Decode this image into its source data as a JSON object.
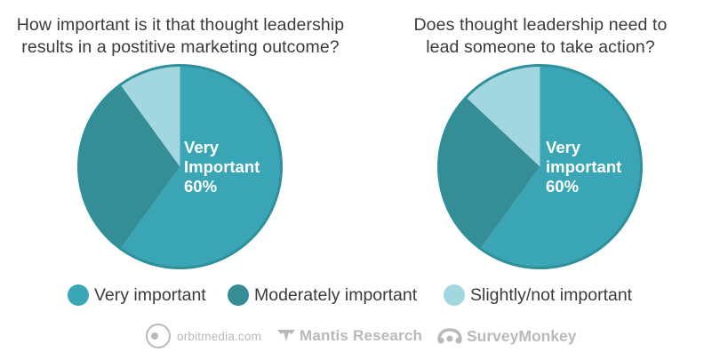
{
  "colors": {
    "very_important": "#3aa6b5",
    "moderately_important": "#358d96",
    "slightly_not_important": "#a3d7df",
    "text": "#3b3b3b",
    "footer_gray": "#b9b9b9"
  },
  "chart_data": [
    {
      "type": "pie",
      "title_lines": [
        "How important is it that thought leadership",
        "results in a postitive marketing outcome?"
      ],
      "categories": [
        "Very important",
        "Moderately important",
        "Slightly/not important"
      ],
      "values": [
        60,
        30,
        10
      ],
      "center_label": [
        "Very",
        "Important",
        "60%"
      ]
    },
    {
      "type": "pie",
      "title_lines": [
        "Does thought leadership need to",
        "lead someone to take action?"
      ],
      "categories": [
        "Very important",
        "Moderately important",
        "Slightly/not important"
      ],
      "values": [
        60,
        27,
        13
      ],
      "center_label": [
        "Very",
        "important",
        "60%"
      ]
    }
  ],
  "legend": {
    "items": [
      "Very important",
      "Moderately important",
      "Slightly/not important"
    ],
    "placement": "bottom"
  },
  "footer": {
    "orbit_text": "orbitmedia.com",
    "mantis_text": "Mantis Research",
    "survey_text": "SurveyMonkey",
    "survey_mark": "·",
    "icons": [
      "orbit-logo-icon",
      "mantis-logo-icon",
      "surveymonkey-logo-icon"
    ]
  }
}
